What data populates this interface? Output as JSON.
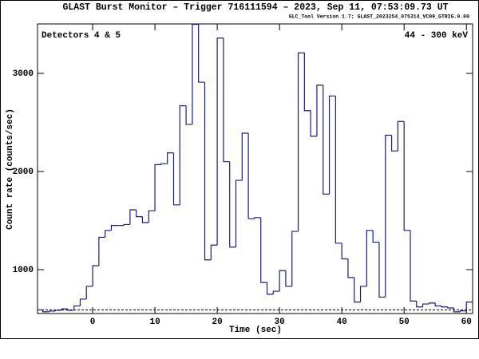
{
  "chart_data": {
    "type": "histogram",
    "title": "GLAST Burst Monitor  –  Trigger 716111594  –  2023, Sep 11, 07:53:09.73 UT",
    "subtitle": "GLC_Tool Version 1.7; GLAST_2023254_075314_VC09_GTRIG.0.00",
    "annotations": [
      "Detectors 4 & 5",
      "44 - 300 keV"
    ],
    "xlabel": "Time (sec)",
    "ylabel": "Count rate (counts/sec)",
    "color": "#1a1a8c",
    "bins": [
      -9,
      -8,
      -7,
      -6,
      -5,
      -4,
      -3,
      -2,
      -1,
      0,
      1,
      2,
      3,
      4,
      5,
      6,
      7,
      8,
      9,
      10,
      11,
      12,
      13,
      14,
      15,
      16,
      17,
      18,
      19,
      20,
      21,
      22,
      23,
      24,
      25,
      26,
      27,
      28,
      29,
      30,
      31,
      32,
      33,
      34,
      35,
      36,
      37,
      38,
      39,
      40,
      41,
      42,
      43,
      44,
      45,
      46,
      47,
      48,
      49,
      50,
      51,
      52,
      53,
      54,
      55,
      56,
      57,
      58,
      59,
      60,
      61
    ],
    "values": [
      590,
      570,
      578,
      585,
      600,
      585,
      630,
      700,
      830,
      1040,
      1330,
      1400,
      1450,
      1450,
      1460,
      1610,
      1540,
      1480,
      1600,
      2070,
      2080,
      2190,
      1660,
      2670,
      2480,
      3500,
      2910,
      1100,
      1250,
      3360,
      2100,
      1230,
      1910,
      2390,
      1520,
      1530,
      870,
      750,
      780,
      990,
      830,
      1390,
      3210,
      2620,
      2360,
      2880,
      1770,
      2770,
      1270,
      1110,
      920,
      670,
      830,
      1400,
      1280,
      720,
      2370,
      2210,
      2510,
      1400,
      680,
      620,
      650,
      660,
      630,
      620,
      610,
      570,
      580,
      670
    ],
    "background": 590,
    "xlim": [
      -8.85,
      61.0
    ],
    "ylim": [
      553,
      3504
    ],
    "xticks": [
      0,
      10,
      20,
      30,
      40,
      50,
      60
    ],
    "yticks": [
      1000,
      2000,
      3000
    ]
  }
}
